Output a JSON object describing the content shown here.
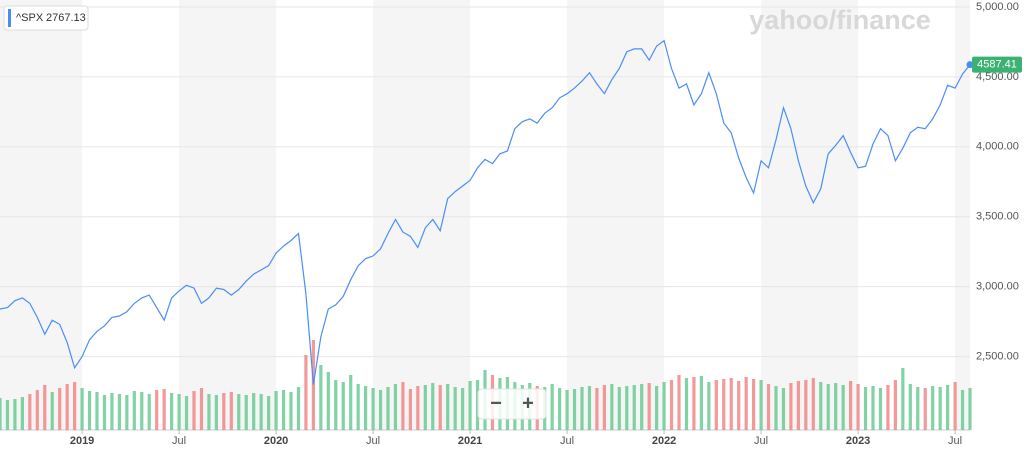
{
  "chart_data": {
    "type": "line",
    "watermark": "yahoo/finance",
    "legend": {
      "value": 2767.13
    },
    "zoom_out": "−",
    "zoom_in": "+",
    "categories": [
      null,
      null,
      null,
      null,
      null,
      null,
      null,
      null,
      null,
      null,
      null,
      "2019",
      null,
      null,
      null,
      null,
      null,
      null,
      null,
      null,
      null,
      null,
      null,
      null,
      "Jul",
      null,
      null,
      null,
      null,
      null,
      null,
      null,
      null,
      null,
      null,
      null,
      null,
      "2020",
      null,
      null,
      null,
      null,
      null,
      null,
      null,
      null,
      null,
      null,
      null,
      null,
      "Jul",
      null,
      null,
      null,
      null,
      null,
      null,
      null,
      null,
      null,
      null,
      null,
      null,
      "2021",
      null,
      null,
      null,
      null,
      null,
      null,
      null,
      null,
      null,
      null,
      null,
      null,
      "Jul",
      null,
      null,
      null,
      null,
      null,
      null,
      null,
      null,
      null,
      null,
      null,
      null,
      "2022",
      null,
      null,
      null,
      null,
      null,
      null,
      null,
      null,
      null,
      null,
      null,
      null,
      "Jul",
      null,
      null,
      null,
      null,
      null,
      null,
      null,
      null,
      null,
      null,
      null,
      null,
      "2023",
      null,
      null,
      null,
      null,
      null,
      null,
      null,
      null,
      null,
      null,
      null,
      null,
      "Jul",
      null,
      null
    ],
    "series": [
      {
        "name": "^SPX",
        "color": "#4b8df7",
        "values": [
          2840,
          2850,
          2900,
          2920,
          2880,
          2780,
          2660,
          2760,
          2730,
          2600,
          2420,
          2500,
          2620,
          2680,
          2720,
          2780,
          2790,
          2820,
          2880,
          2920,
          2940,
          2850,
          2760,
          2920,
          2970,
          3010,
          2990,
          2880,
          2920,
          2990,
          2980,
          2940,
          2980,
          3040,
          3090,
          3120,
          3150,
          3240,
          3290,
          3330,
          3380,
          2950,
          2300,
          2640,
          2840,
          2870,
          2930,
          3050,
          3150,
          3200,
          3220,
          3270,
          3380,
          3480,
          3390,
          3360,
          3280,
          3420,
          3480,
          3400,
          3630,
          3680,
          3720,
          3760,
          3850,
          3910,
          3880,
          3950,
          3970,
          4130,
          4180,
          4200,
          4170,
          4240,
          4280,
          4350,
          4380,
          4420,
          4470,
          4530,
          4450,
          4380,
          4480,
          4560,
          4680,
          4700,
          4700,
          4620,
          4720,
          4760,
          4560,
          4420,
          4450,
          4300,
          4380,
          4530,
          4380,
          4170,
          4100,
          3920,
          3780,
          3670,
          3900,
          3850,
          4050,
          4280,
          4130,
          3900,
          3720,
          3600,
          3700,
          3950,
          4010,
          4080,
          3960,
          3850,
          3860,
          4020,
          4130,
          4080,
          3900,
          3990,
          4100,
          4140,
          4130,
          4200,
          4300,
          4440,
          4420,
          4520,
          4587.41
        ]
      },
      {
        "axis": "y2",
        "up_color": "#62c88f",
        "down_color": "#f08080",
        "values": [
          3.2,
          3.0,
          3.1,
          3.3,
          3.6,
          4.0,
          4.5,
          3.8,
          4.2,
          4.6,
          4.8,
          4.2,
          3.9,
          3.8,
          3.5,
          3.7,
          3.6,
          3.5,
          3.9,
          3.8,
          3.6,
          4.0,
          4.1,
          3.7,
          3.6,
          3.4,
          3.9,
          4.2,
          3.6,
          3.5,
          3.7,
          3.8,
          3.6,
          3.5,
          3.7,
          3.6,
          3.4,
          3.9,
          4.0,
          3.8,
          4.3,
          7.5,
          9.0,
          6.5,
          5.8,
          5.0,
          4.8,
          5.5,
          4.6,
          4.4,
          4.2,
          4.0,
          4.3,
          4.6,
          4.8,
          4.1,
          4.4,
          4.5,
          4.7,
          4.5,
          4.6,
          4.3,
          4.2,
          4.9,
          5.0,
          6.0,
          5.5,
          5.2,
          5.3,
          4.8,
          4.5,
          4.7,
          4.4,
          4.3,
          4.6,
          4.2,
          4.0,
          4.1,
          4.3,
          4.4,
          4.2,
          4.5,
          4.6,
          4.3,
          4.4,
          4.5,
          4.6,
          4.7,
          4.4,
          4.8,
          5.0,
          5.5,
          5.2,
          5.3,
          5.4,
          4.8,
          5.0,
          5.1,
          5.2,
          4.9,
          5.3,
          5.1,
          5.0,
          4.6,
          4.4,
          4.2,
          4.7,
          4.9,
          5.0,
          5.2,
          4.8,
          4.6,
          4.7,
          4.5,
          4.9,
          4.6,
          4.3,
          4.4,
          4.2,
          4.5,
          5.0,
          6.2,
          4.6,
          4.3,
          4.2,
          4.4,
          4.3,
          4.5,
          4.8,
          4.0,
          4.2
        ]
      }
    ],
    "ylim": [
      1975,
      5050
    ],
    "yticks": [
      {
        "value": 2500,
        "label": "2,500.00"
      },
      {
        "value": 3000,
        "label": "3,000.00"
      },
      {
        "value": 3500,
        "label": "3,500.00"
      },
      {
        "value": 4000,
        "label": "4,000.00"
      },
      {
        "value": 4500,
        "label": "4,500.00"
      },
      {
        "value": 5000,
        "label": "5,000.00"
      }
    ],
    "y2lim": [
      0,
      43
    ],
    "grid": true,
    "last_label_color": "#3bb273"
  }
}
